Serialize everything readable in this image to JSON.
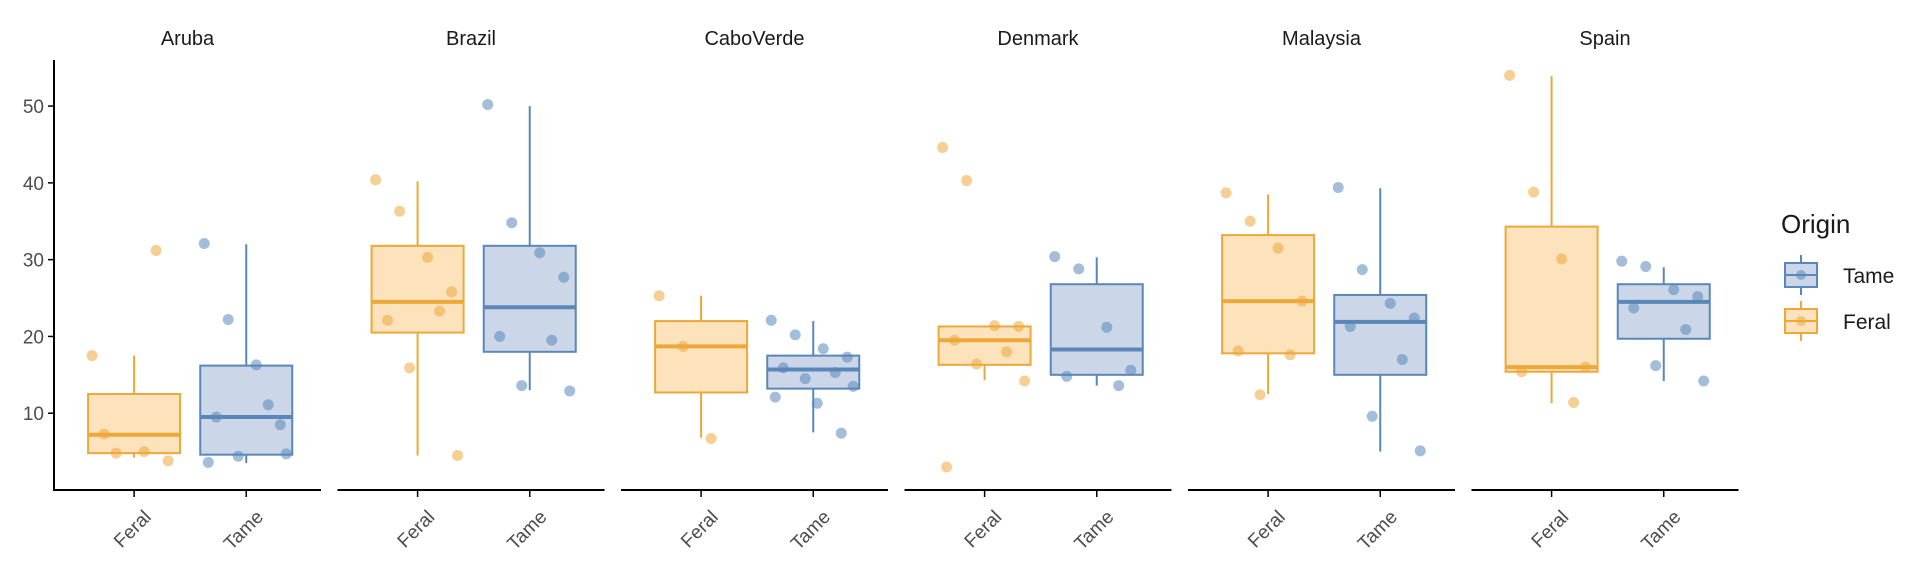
{
  "chart_data": {
    "type": "boxplot",
    "title": "",
    "xlabel": "",
    "ylabel": "",
    "ylim": [
      0,
      56
    ],
    "yticks": [
      10,
      20,
      30,
      40,
      50
    ],
    "categories": [
      "Feral",
      "Tame"
    ],
    "grid": false,
    "legend": {
      "title": "Origin",
      "placement": "right",
      "entries": [
        {
          "label": "Tame",
          "key": "Tame"
        },
        {
          "label": "Feral",
          "key": "Feral"
        }
      ]
    },
    "colors": {
      "Feral": {
        "stroke": "#EDA83A",
        "fill": "#FCE3BC"
      },
      "Tame": {
        "stroke": "#5A87B8",
        "fill": "#CBD7E8"
      }
    },
    "panels": [
      {
        "name": "Aruba",
        "groups": [
          {
            "category": "Feral",
            "whisker_low": 4.2,
            "q1": 4.8,
            "median": 7.2,
            "q3": 12.5,
            "whisker_high": 17.5,
            "points": [
              17.5,
              4.8,
              5.0,
              3.8,
              7.3,
              31.2
            ],
            "outliers": [
              31.2
            ]
          },
          {
            "category": "Tame",
            "whisker_low": 3.5,
            "q1": 4.6,
            "median": 9.5,
            "q3": 16.2,
            "whisker_high": 32.0,
            "points": [
              32.1,
              22.2,
              16.3,
              8.5,
              9.5,
              11.1,
              4.4,
              4.7,
              3.6
            ],
            "outliers": []
          }
        ]
      },
      {
        "name": "Brazil",
        "groups": [
          {
            "category": "Feral",
            "whisker_low": 4.5,
            "q1": 20.5,
            "median": 24.5,
            "q3": 31.8,
            "whisker_high": 40.2,
            "points": [
              40.4,
              36.3,
              30.3,
              25.8,
              22.1,
              23.3,
              15.9,
              4.5
            ],
            "outliers": []
          },
          {
            "category": "Tame",
            "whisker_low": 13.0,
            "q1": 18.0,
            "median": 23.8,
            "q3": 31.8,
            "whisker_high": 50.0,
            "points": [
              50.2,
              34.8,
              30.9,
              27.7,
              20.0,
              19.5,
              13.6,
              12.9
            ],
            "outliers": []
          }
        ]
      },
      {
        "name": "CaboVerde",
        "groups": [
          {
            "category": "Feral",
            "whisker_low": 6.8,
            "q1": 12.7,
            "median": 18.7,
            "q3": 22.0,
            "whisker_high": 25.3,
            "points": [
              25.3,
              18.7,
              6.7
            ],
            "outliers": []
          },
          {
            "category": "Tame",
            "whisker_low": 7.5,
            "q1": 13.2,
            "median": 15.7,
            "q3": 17.5,
            "whisker_high": 22.0,
            "points": [
              22.1,
              20.2,
              18.4,
              17.3,
              15.9,
              15.3,
              14.5,
              13.5,
              12.1,
              11.3,
              7.4
            ],
            "outliers": []
          }
        ]
      },
      {
        "name": "Denmark",
        "groups": [
          {
            "category": "Feral",
            "whisker_low": 14.3,
            "q1": 16.3,
            "median": 19.5,
            "q3": 21.3,
            "whisker_high": 21.3,
            "points": [
              44.6,
              40.3,
              21.4,
              21.3,
              19.5,
              18.0,
              16.4,
              14.2,
              3.0
            ],
            "outliers": [
              44.6,
              40.3,
              3.0
            ]
          },
          {
            "category": "Tame",
            "whisker_low": 13.6,
            "q1": 15.0,
            "median": 18.3,
            "q3": 26.8,
            "whisker_high": 30.3,
            "points": [
              30.4,
              28.8,
              21.2,
              15.6,
              14.8,
              13.6
            ],
            "outliers": []
          }
        ]
      },
      {
        "name": "Malaysia",
        "groups": [
          {
            "category": "Feral",
            "whisker_low": 12.5,
            "q1": 17.8,
            "median": 24.6,
            "q3": 33.2,
            "whisker_high": 38.5,
            "points": [
              38.7,
              35.0,
              31.5,
              24.6,
              18.1,
              17.6,
              12.4
            ],
            "outliers": []
          },
          {
            "category": "Tame",
            "whisker_low": 5.0,
            "q1": 15.0,
            "median": 21.9,
            "q3": 25.4,
            "whisker_high": 39.3,
            "points": [
              39.4,
              28.7,
              24.3,
              22.4,
              21.3,
              17.0,
              9.6,
              5.1
            ],
            "outliers": []
          }
        ]
      },
      {
        "name": "Spain",
        "groups": [
          {
            "category": "Feral",
            "whisker_low": 11.3,
            "q1": 15.4,
            "median": 16.0,
            "q3": 34.3,
            "whisker_high": 53.9,
            "points": [
              54.0,
              38.8,
              30.1,
              16.0,
              15.4,
              11.4
            ],
            "outliers": []
          },
          {
            "category": "Tame",
            "whisker_low": 14.2,
            "q1": 19.7,
            "median": 24.5,
            "q3": 26.8,
            "whisker_high": 29.0,
            "points": [
              29.8,
              29.1,
              26.1,
              25.2,
              23.7,
              20.9,
              16.2,
              14.2
            ],
            "outliers": []
          }
        ]
      }
    ]
  }
}
